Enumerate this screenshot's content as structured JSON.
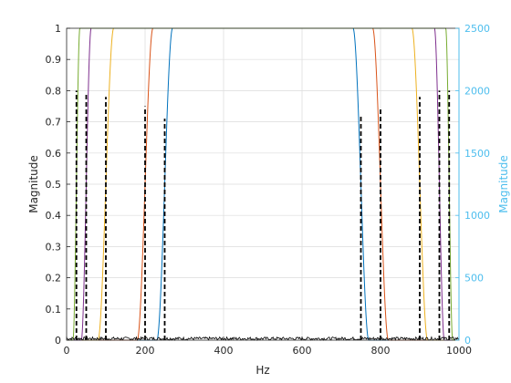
{
  "chart_data": {
    "type": "line",
    "title": "",
    "xlabel": "Hz",
    "ylabel_left": "Magnitude",
    "ylabel_right": "Magnitude",
    "xlim": [
      0,
      1000
    ],
    "ylim_left": [
      0,
      1
    ],
    "ylim_right": [
      0,
      2500
    ],
    "grid": true,
    "x_ticks": [
      0,
      200,
      400,
      600,
      800,
      1000
    ],
    "y_ticks_left": [
      0,
      0.1,
      0.2,
      0.3,
      0.4,
      0.5,
      0.6,
      0.7,
      0.8,
      0.9,
      1
    ],
    "y_ticks_right": [
      0,
      500,
      1000,
      1500,
      2000,
      2500
    ],
    "filter_bands": [
      {
        "color": "#0072BD",
        "lo": 250,
        "hi": 750
      },
      {
        "color": "#D95319",
        "lo": 200,
        "hi": 800
      },
      {
        "color": "#EDB120",
        "lo": 100,
        "hi": 900
      },
      {
        "color": "#7E2F8E",
        "lo": 50,
        "hi": 950
      },
      {
        "color": "#77AC30",
        "lo": 25,
        "hi": 975
      }
    ],
    "spectrum": {
      "name": "",
      "axis": "right",
      "color": "#000000",
      "style": "dashed",
      "peaks": [
        {
          "x": 25,
          "y": 2000
        },
        {
          "x": 50,
          "y": 1975
        },
        {
          "x": 100,
          "y": 1950
        },
        {
          "x": 200,
          "y": 1875
        },
        {
          "x": 250,
          "y": 1775
        },
        {
          "x": 750,
          "y": 1800
        },
        {
          "x": 800,
          "y": 1850
        },
        {
          "x": 900,
          "y": 1950
        },
        {
          "x": 950,
          "y": 2000
        },
        {
          "x": 975,
          "y": 2000
        }
      ],
      "noise_level": 25
    }
  }
}
